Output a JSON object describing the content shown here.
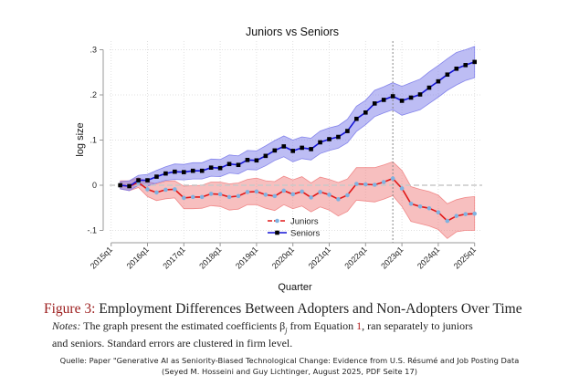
{
  "chart_data": {
    "type": "line",
    "title": "Juniors vs Seniors",
    "xlabel": "Quarter",
    "ylabel": "log size",
    "ylim": [
      -0.12,
      0.31
    ],
    "yticks": [
      -0.1,
      0,
      0.1,
      0.2,
      0.3
    ],
    "ytick_labels": [
      "-.1",
      "0",
      ".1",
      ".2",
      ".3"
    ],
    "xticks": [
      "2015q1",
      "2016q1",
      "2017q1",
      "2018q1",
      "2019q1",
      "2020q1",
      "2021q1",
      "2022q1",
      "2023q1",
      "2024q1",
      "2025q1"
    ],
    "grid": true,
    "reference_line_y": 0,
    "vertical_marker": "2022q4",
    "legend_placement": "bottom-center",
    "x": [
      "2015q2",
      "2015q3",
      "2015q4",
      "2016q1",
      "2016q2",
      "2016q3",
      "2016q4",
      "2017q1",
      "2017q2",
      "2017q3",
      "2017q4",
      "2018q1",
      "2018q2",
      "2018q3",
      "2018q4",
      "2019q1",
      "2019q2",
      "2019q3",
      "2019q4",
      "2020q1",
      "2020q2",
      "2020q3",
      "2020q4",
      "2021q1",
      "2021q2",
      "2021q3",
      "2021q4",
      "2022q1",
      "2022q2",
      "2022q3",
      "2022q4",
      "2023q1",
      "2023q2",
      "2023q3",
      "2023q4",
      "2024q1",
      "2024q2",
      "2024q3",
      "2024q4",
      "2025q1"
    ],
    "series": [
      {
        "name": "Juniors",
        "line_color": "#e01818",
        "marker_color": "#7fb2e0",
        "band_color": "#f08080",
        "values": [
          0,
          -0.002,
          0.006,
          -0.009,
          -0.016,
          -0.01,
          -0.009,
          -0.028,
          -0.026,
          -0.026,
          -0.019,
          -0.02,
          -0.026,
          -0.024,
          -0.015,
          -0.014,
          -0.021,
          -0.024,
          -0.012,
          -0.02,
          -0.014,
          -0.027,
          -0.015,
          -0.021,
          -0.031,
          -0.022,
          0.003,
          0.002,
          0.001,
          0.007,
          0.015,
          -0.007,
          -0.041,
          -0.047,
          -0.051,
          -0.06,
          -0.079,
          -0.068,
          -0.064,
          -0.063
        ],
        "ci_lower": [
          -0.008,
          -0.012,
          -0.005,
          -0.025,
          -0.034,
          -0.03,
          -0.028,
          -0.052,
          -0.052,
          -0.051,
          -0.045,
          -0.047,
          -0.055,
          -0.053,
          -0.043,
          -0.043,
          -0.051,
          -0.056,
          -0.043,
          -0.052,
          -0.046,
          -0.059,
          -0.048,
          -0.055,
          -0.068,
          -0.058,
          -0.033,
          -0.035,
          -0.037,
          -0.031,
          -0.023,
          -0.047,
          -0.08,
          -0.085,
          -0.09,
          -0.098,
          -0.118,
          -0.103,
          -0.1,
          -0.1
        ],
        "ci_upper": [
          0.01,
          0.01,
          0.017,
          0.008,
          0.003,
          0.009,
          0.01,
          -0.002,
          -0.001,
          0.0,
          0.007,
          0.007,
          0.003,
          0.005,
          0.013,
          0.016,
          0.01,
          0.008,
          0.02,
          0.012,
          0.019,
          0.005,
          0.018,
          0.013,
          0.006,
          0.014,
          0.039,
          0.039,
          0.039,
          0.045,
          0.052,
          0.033,
          -0.003,
          -0.009,
          -0.014,
          -0.022,
          -0.041,
          -0.032,
          -0.027,
          -0.025
        ]
      },
      {
        "name": "Seniors",
        "line_color": "#1414d6",
        "marker_color": "#000000",
        "band_color": "#7b7bea",
        "values": [
          0,
          -0.002,
          0.011,
          0.011,
          0.019,
          0.026,
          0.03,
          0.029,
          0.032,
          0.032,
          0.039,
          0.038,
          0.047,
          0.045,
          0.056,
          0.055,
          0.065,
          0.077,
          0.086,
          0.076,
          0.083,
          0.08,
          0.095,
          0.102,
          0.107,
          0.12,
          0.147,
          0.161,
          0.181,
          0.189,
          0.197,
          0.187,
          0.194,
          0.201,
          0.216,
          0.23,
          0.245,
          0.258,
          0.266,
          0.273
        ],
        "ci_lower": [
          -0.008,
          -0.012,
          0.0,
          -0.002,
          0.005,
          0.011,
          0.013,
          0.012,
          0.014,
          0.014,
          0.02,
          0.019,
          0.027,
          0.025,
          0.035,
          0.034,
          0.043,
          0.055,
          0.063,
          0.052,
          0.059,
          0.056,
          0.07,
          0.077,
          0.082,
          0.094,
          0.119,
          0.134,
          0.152,
          0.16,
          0.167,
          0.155,
          0.161,
          0.167,
          0.181,
          0.195,
          0.21,
          0.222,
          0.232,
          0.238
        ],
        "ci_upper": [
          0.008,
          0.01,
          0.022,
          0.024,
          0.033,
          0.041,
          0.047,
          0.046,
          0.05,
          0.05,
          0.058,
          0.057,
          0.067,
          0.065,
          0.077,
          0.076,
          0.087,
          0.099,
          0.109,
          0.1,
          0.107,
          0.104,
          0.12,
          0.127,
          0.132,
          0.146,
          0.175,
          0.188,
          0.21,
          0.218,
          0.227,
          0.219,
          0.227,
          0.235,
          0.251,
          0.265,
          0.28,
          0.294,
          0.3,
          0.307
        ]
      }
    ]
  },
  "caption": {
    "figure_label": "Figure 3:",
    "figure_title": " Employment Differences Between Adopters and Non-Adopters Over Time",
    "notes_label": "Notes:",
    "notes_text_1": " The graph present the estimated coefficients β",
    "notes_sub": "j",
    "notes_text_2": " from Equation ",
    "notes_ref": "1",
    "notes_text_3": ", ran separately to juniors",
    "notes_line_2": "and seniors. Standard errors are clustered in firm level."
  },
  "source": {
    "line_1": "Quelle: Paper \"Generative AI as Seniority-Biased Technological Change: Evidence from U.S. Résumé and Job Posting Data",
    "line_2": "(Seyed M. Hosseini and Guy Lichtinger, August 2025, PDF Seite 17)"
  }
}
